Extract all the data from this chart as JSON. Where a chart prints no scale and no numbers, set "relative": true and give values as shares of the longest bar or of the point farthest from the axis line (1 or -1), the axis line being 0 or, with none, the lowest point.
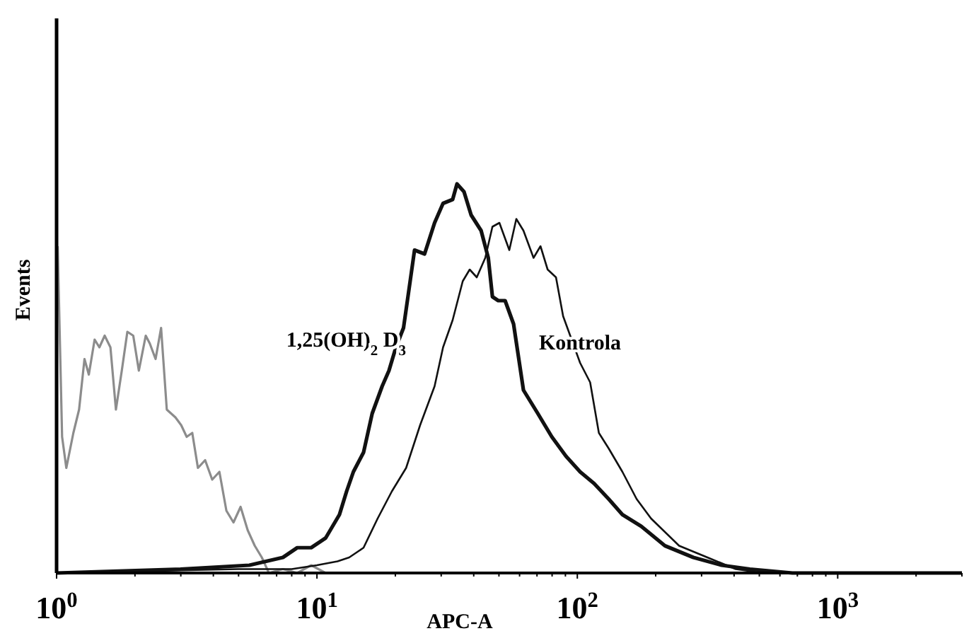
{
  "chart_data": {
    "type": "line",
    "relative": true,
    "xlabel": "APC-A",
    "ylabel": "Events",
    "log": "x",
    "xlim": [
      1,
      3000
    ],
    "xticks": [
      {
        "value": 1,
        "label": "10$^{0}$"
      },
      {
        "value": 2,
        "label": null
      },
      {
        "value": 3,
        "label": null
      },
      {
        "value": 4,
        "label": null
      },
      {
        "value": 5,
        "label": null
      },
      {
        "value": 6,
        "label": null
      },
      {
        "value": 7,
        "label": null
      },
      {
        "value": 8,
        "label": null
      },
      {
        "value": 9,
        "label": null
      },
      {
        "value": 10,
        "label": "10$^{1}$"
      },
      {
        "value": 20,
        "label": null
      },
      {
        "value": 30,
        "label": null
      },
      {
        "value": 40,
        "label": null
      },
      {
        "value": 50,
        "label": null
      },
      {
        "value": 60,
        "label": null
      },
      {
        "value": 70,
        "label": null
      },
      {
        "value": 80,
        "label": null
      },
      {
        "value": 90,
        "label": null
      },
      {
        "value": 100,
        "label": "10$^{2}$"
      },
      {
        "value": 200,
        "label": null
      },
      {
        "value": 300,
        "label": null
      },
      {
        "value": 400,
        "label": null
      },
      {
        "value": 500,
        "label": null
      },
      {
        "value": 600,
        "label": null
      },
      {
        "value": 700,
        "label": null
      },
      {
        "value": 800,
        "label": null
      },
      {
        "value": 900,
        "label": null
      },
      {
        "value": 1000,
        "label": "10$^{3}$"
      },
      {
        "value": 2000,
        "label": null
      },
      {
        "value": 3000,
        "label": null
      }
    ],
    "grid": false,
    "marker": "none",
    "line_style": "solid",
    "series": [
      {
        "color": "#8c8c8c",
        "x": [
          1.01,
          1.05,
          1.09,
          1.16,
          1.22,
          1.28,
          1.33,
          1.4,
          1.46,
          1.53,
          1.61,
          1.69,
          1.78,
          1.87,
          1.97,
          2.07,
          2.2,
          2.28,
          2.4,
          2.52,
          2.65,
          2.86,
          3.01,
          3.16,
          3.32,
          3.49,
          3.72,
          3.96,
          4.22,
          4.49,
          4.78,
          5.09,
          5.42,
          5.77,
          6.14,
          6.54,
          7.4,
          8.4,
          9.5,
          10.8,
          12.2,
          13.8
        ],
        "values": [
          0.84,
          0.35,
          0.27,
          0.36,
          0.42,
          0.55,
          0.51,
          0.6,
          0.58,
          0.61,
          0.58,
          0.42,
          0.52,
          0.62,
          0.61,
          0.52,
          0.61,
          0.59,
          0.55,
          0.63,
          0.42,
          0.4,
          0.38,
          0.35,
          0.36,
          0.27,
          0.29,
          0.24,
          0.26,
          0.16,
          0.13,
          0.17,
          0.11,
          0.07,
          0.04,
          0,
          0.01,
          0,
          0.02,
          0,
          0,
          0
        ]
      },
      {
        "color": "#111111",
        "x": [
          1,
          3,
          5.5,
          7.4,
          8.4,
          9.5,
          10.8,
          12.2,
          13,
          13.8,
          15.1,
          16.3,
          17.8,
          18.9,
          20.1,
          21.5,
          22.8,
          23.7,
          25.9,
          28.3,
          30.5,
          33.2,
          34.5,
          36.7,
          39.1,
          42.7,
          45.5,
          47.2,
          49.7,
          52.8,
          56.9,
          62.1,
          70.5,
          79.8,
          90.5,
          102.5,
          116,
          132,
          149,
          176,
          217,
          279,
          358,
          460,
          670,
          3000
        ],
        "values": [
          0,
          0.01,
          0.02,
          0.04,
          0.065,
          0.065,
          0.09,
          0.15,
          0.21,
          0.26,
          0.31,
          0.41,
          0.48,
          0.52,
          0.58,
          0.63,
          0.75,
          0.83,
          0.82,
          0.9,
          0.95,
          0.96,
          1,
          0.98,
          0.92,
          0.88,
          0.81,
          0.71,
          0.7,
          0.7,
          0.64,
          0.47,
          0.41,
          0.35,
          0.3,
          0.26,
          0.23,
          0.19,
          0.15,
          0.12,
          0.07,
          0.04,
          0.02,
          0.01,
          0,
          0
        ]
      },
      {
        "color": "#111111",
        "x": [
          1,
          5,
          8,
          10,
          12,
          13.3,
          15.1,
          17.1,
          19.4,
          22,
          24.9,
          28.3,
          30.5,
          33.2,
          36.3,
          38.6,
          41.1,
          44.3,
          47.2,
          50.2,
          54.8,
          58.3,
          62.1,
          67.9,
          72.2,
          76.9,
          82.8,
          88.2,
          102.5,
          112,
          121,
          132,
          149,
          169,
          192,
          246,
          316,
          406,
          521,
          3000
        ],
        "values": [
          0,
          0.01,
          0.01,
          0.02,
          0.03,
          0.04,
          0.065,
          0.14,
          0.21,
          0.27,
          0.38,
          0.48,
          0.58,
          0.65,
          0.75,
          0.78,
          0.76,
          0.81,
          0.89,
          0.9,
          0.83,
          0.91,
          0.88,
          0.81,
          0.84,
          0.78,
          0.76,
          0.66,
          0.54,
          0.49,
          0.36,
          0.32,
          0.26,
          0.19,
          0.14,
          0.07,
          0.04,
          0.01,
          0,
          0
        ]
      }
    ],
    "annotations": [
      "1,25(OH)$_{2}$ D$_{3}$",
      "Kontrola"
    ]
  }
}
